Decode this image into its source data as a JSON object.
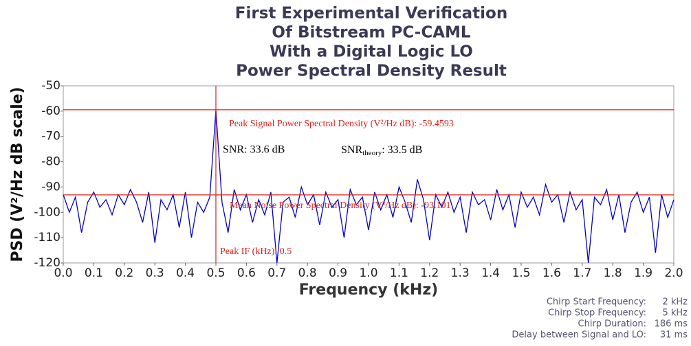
{
  "chart_data": {
    "type": "line",
    "title": [
      "First Experimental Verification",
      "Of Bitstream PC-CAML",
      "With a Digital Logic LO",
      "Power Spectral Density Result"
    ],
    "xlabel": "Frequency (kHz)",
    "ylabel": "PSD (V²/Hz dB scale)",
    "xlim": [
      0,
      2
    ],
    "ylim": [
      -120,
      -50
    ],
    "xticks": [
      {
        "value": 0,
        "label": "0.0"
      },
      0.1,
      0.2,
      0.3,
      0.4,
      0.5,
      0.6,
      0.7,
      0.8,
      0.9,
      {
        "value": 1,
        "label": "1.0"
      },
      1.1,
      1.2,
      1.3,
      1.4,
      1.5,
      1.6,
      1.7,
      1.8,
      1.9,
      {
        "value": 2,
        "label": "2.0"
      }
    ],
    "yticks": [
      -50,
      -60,
      -70,
      -80,
      -90,
      -100,
      -110,
      -120
    ],
    "x": [
      0,
      0.02,
      0.04,
      0.06,
      0.08,
      0.1,
      0.12,
      0.14,
      0.16,
      0.18,
      0.2,
      0.22,
      0.24,
      0.26,
      0.28,
      0.3,
      0.32,
      0.34,
      0.36,
      0.38,
      0.4,
      0.42,
      0.44,
      0.46,
      0.48,
      0.5,
      0.52,
      0.54,
      0.56,
      0.58,
      0.6,
      0.62,
      0.64,
      0.66,
      0.68,
      0.7,
      0.72,
      0.74,
      0.76,
      0.78,
      0.8,
      0.82,
      0.84,
      0.86,
      0.88,
      0.9,
      0.92,
      0.94,
      0.96,
      0.98,
      1,
      1.02,
      1.04,
      1.06,
      1.08,
      1.1,
      1.12,
      1.14,
      1.16,
      1.18,
      1.2,
      1.22,
      1.24,
      1.26,
      1.28,
      1.3,
      1.32,
      1.34,
      1.36,
      1.38,
      1.4,
      1.42,
      1.44,
      1.46,
      1.48,
      1.5,
      1.52,
      1.54,
      1.56,
      1.58,
      1.6,
      1.62,
      1.64,
      1.66,
      1.68,
      1.7,
      1.72,
      1.74,
      1.76,
      1.78,
      1.8,
      1.82,
      1.84,
      1.86,
      1.88,
      1.9,
      1.92,
      1.94,
      1.96,
      1.98,
      2
    ],
    "series": [
      {
        "color": "#0000cc",
        "values": [
          -93,
          -100,
          -94,
          -108,
          -96,
          -92,
          -98,
          -95,
          -101,
          -93,
          -97,
          -91,
          -96,
          -104,
          -92,
          -112,
          -95,
          -99,
          -93,
          -106,
          -92,
          -110,
          -96,
          -100,
          -94,
          -59.5,
          -96,
          -108,
          -91,
          -99,
          -93,
          -104,
          -95,
          -101,
          -92,
          -120,
          -96,
          -94,
          -102,
          -90,
          -97,
          -93,
          -105,
          -92,
          -98,
          -95,
          -110,
          -91,
          -97,
          -94,
          -107,
          -92,
          -99,
          -93,
          -102,
          -90,
          -96,
          -104,
          -87,
          -95,
          -111,
          -93,
          -98,
          -92,
          -100,
          -94,
          -108,
          -92,
          -97,
          -95,
          -103,
          -91,
          -99,
          -93,
          -106,
          -92,
          -98,
          -94,
          -101,
          -89,
          -96,
          -93,
          -104,
          -92,
          -99,
          -95,
          -120,
          -94,
          -97,
          -91,
          -103,
          -93,
          -108,
          -96,
          -92,
          -100,
          -94,
          -116,
          -93,
          -102,
          -95
        ]
      }
    ],
    "peak_psd": -59.4593,
    "mean_noise_psd": -93.101,
    "peak_if": 0.5,
    "marker_color": "#e0201c",
    "annotations": {
      "peak_text": "Peak Signal Power Spectral Density (V²/Hz dB): -59.4593",
      "noise_text": "Mean Noise Power Spectral Density (V²/Hz dB): -93.101",
      "if_text": "Peak IF (kHz): 0.5",
      "snr": "SNR: 33.6 dB",
      "snr_theory": {
        "main": "SNR",
        "sub": "theory",
        "rest": ": 33.5 dB"
      }
    },
    "info": [
      [
        "Chirp Start Frequency:",
        "2 kHz"
      ],
      [
        "Chirp Stop Frequency:",
        "5 kHz"
      ],
      [
        "Chirp Duration:",
        "186 ms"
      ],
      [
        "Delay between Signal and LO:",
        "31 ms"
      ]
    ]
  }
}
